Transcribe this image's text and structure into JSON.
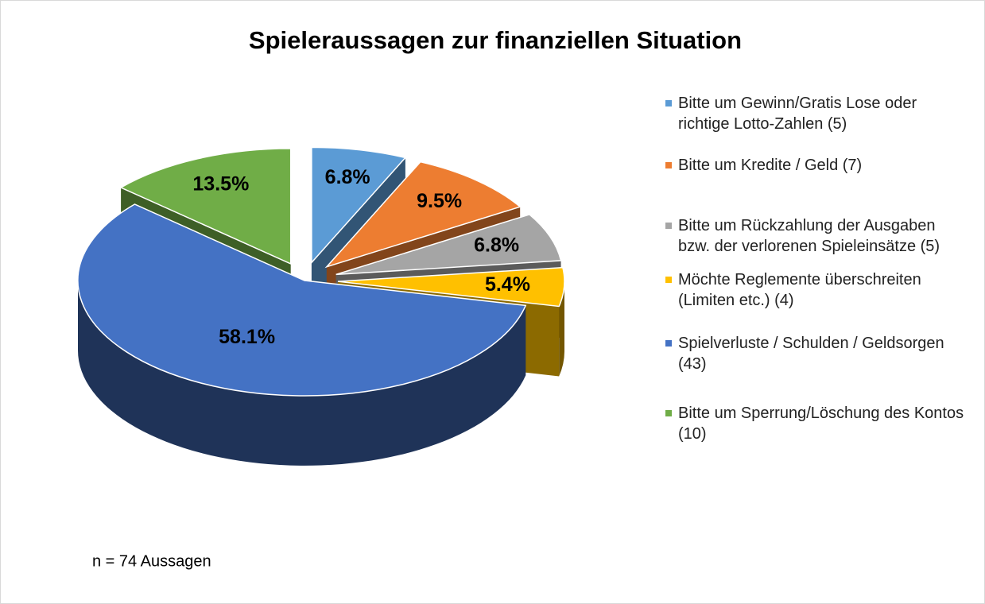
{
  "chart_data": {
    "type": "pie",
    "title": "Spieleraussagen zur finanziellen Situation",
    "categories": [
      "Bitte um Gewinn/Gratis Lose oder richtige Lotto-Zahlen (5)",
      "Bitte um Kredite / Geld (7)",
      "Bitte um Rückzahlung der Ausgaben bzw. der verlorenen Spieleinsätze (5)",
      "Möchte Reglemente überschreiten (Limiten etc.) (4)",
      "Spielverluste / Schulden / Geldsorgen (43)",
      "Bitte um Sperrung/Löschung des Kontos (10)"
    ],
    "values": [
      6.8,
      9.5,
      6.8,
      5.4,
      58.1,
      13.5
    ],
    "value_labels": [
      "6.8%",
      "9.5%",
      "6.8%",
      "5.4%",
      "58.1%",
      "13.5%"
    ],
    "colors": [
      "#5b9bd5",
      "#ed7d31",
      "#a5a5a5",
      "#ffc000",
      "#4472c4",
      "#70ad47"
    ],
    "annotation": "n = 74 Aussagen",
    "legend": "right"
  }
}
